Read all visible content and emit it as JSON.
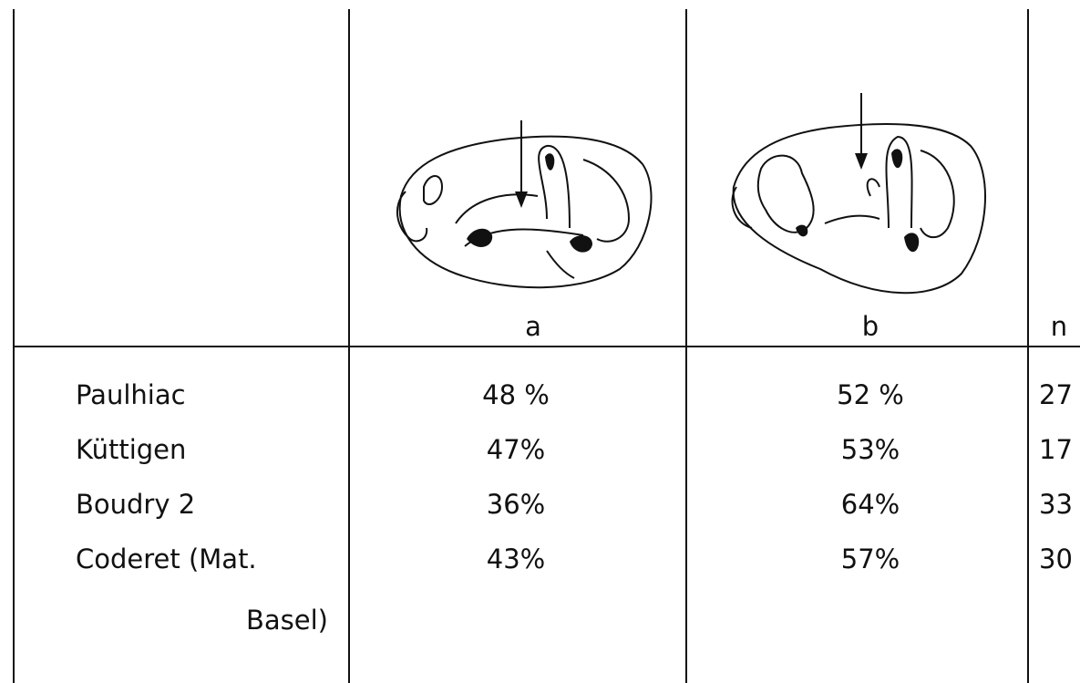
{
  "table": {
    "columns": [
      "a",
      "b",
      "n"
    ],
    "rows": [
      {
        "site": [
          "Paulhiac"
        ],
        "a": "48 %",
        "b": "52 %",
        "n": "27"
      },
      {
        "site": [
          "Küttigen"
        ],
        "a": "47%",
        "b": "53%",
        "n": "17"
      },
      {
        "site": [
          "Boudry 2"
        ],
        "a": "36%",
        "b": "64%",
        "n": "33"
      },
      {
        "site": [
          "Coderet (Mat.",
          "Basel)"
        ],
        "a": "43%",
        "b": "57%",
        "n": "30"
      }
    ]
  }
}
